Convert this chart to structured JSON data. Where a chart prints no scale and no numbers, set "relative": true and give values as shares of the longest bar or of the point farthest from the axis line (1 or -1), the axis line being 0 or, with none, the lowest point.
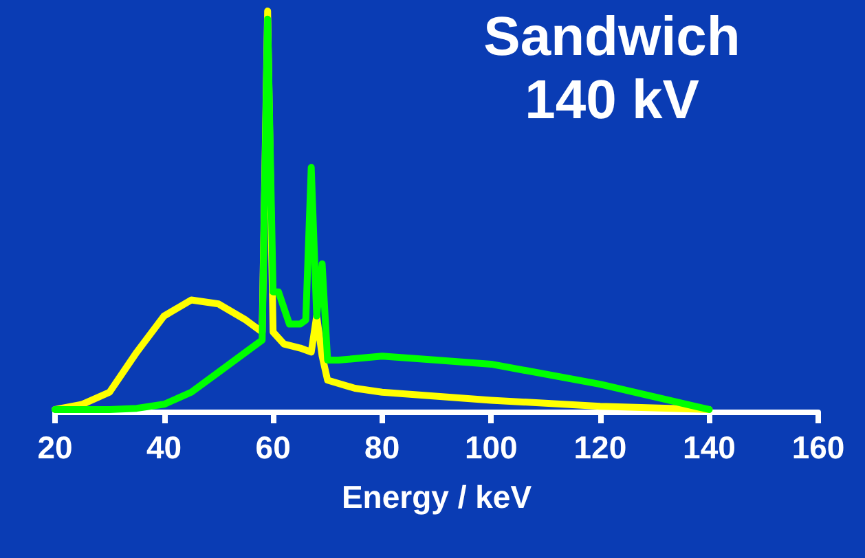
{
  "chart_data": {
    "type": "line",
    "title": "Sandwich",
    "subtitle": "140 kV",
    "xlabel": "Energy / keV",
    "relative": true,
    "xlim": [
      20,
      160
    ],
    "xticks": [
      20,
      40,
      60,
      80,
      100,
      120,
      140,
      160
    ],
    "grid": false,
    "marker": "none",
    "line_style": "solid",
    "series": [
      {
        "color": "#ffff00",
        "x": [
          20,
          25,
          30,
          35,
          40,
          45,
          50,
          55,
          58,
          59,
          60,
          62,
          65,
          67,
          68,
          69,
          70,
          75,
          80,
          100,
          120,
          140
        ],
        "values": [
          0.007,
          0.02,
          0.05,
          0.15,
          0.24,
          0.28,
          0.27,
          0.23,
          0.2,
          1,
          0.2,
          0.17,
          0.16,
          0.15,
          0.24,
          0.14,
          0.08,
          0.06,
          0.05,
          0.03,
          0.015,
          0.007
        ]
      },
      {
        "color": "#00ff00",
        "x": [
          20,
          30,
          35,
          40,
          45,
          50,
          55,
          58,
          59,
          60,
          61,
          63,
          65,
          66,
          67,
          68,
          69,
          70,
          72,
          80,
          90,
          100,
          120,
          140
        ],
        "values": [
          0.007,
          0.007,
          0.01,
          0.02,
          0.05,
          0.1,
          0.15,
          0.18,
          0.98,
          0.3,
          0.3,
          0.22,
          0.22,
          0.23,
          0.61,
          0.24,
          0.37,
          0.13,
          0.13,
          0.14,
          0.13,
          0.12,
          0.07,
          0.007
        ]
      }
    ]
  }
}
